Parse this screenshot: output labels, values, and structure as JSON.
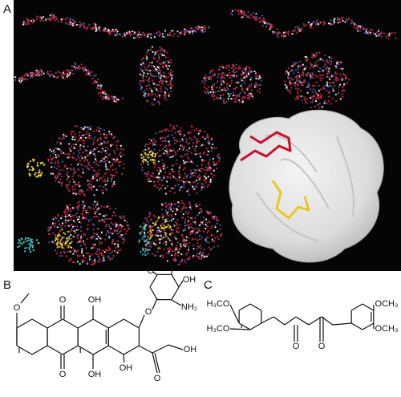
{
  "panels": [
    {
      "label": "A"
    },
    {
      "label": "B",
      "atoms": [
        "O",
        "O",
        "O",
        "OH",
        "OH",
        "O",
        "O",
        "OH",
        "NH₂",
        "OH",
        "O",
        "OH"
      ]
    },
    {
      "label": "C",
      "atoms": [
        "H₃CO",
        "H₃CO",
        "OCH₃",
        "OCH₃",
        "O",
        "O"
      ]
    }
  ]
}
